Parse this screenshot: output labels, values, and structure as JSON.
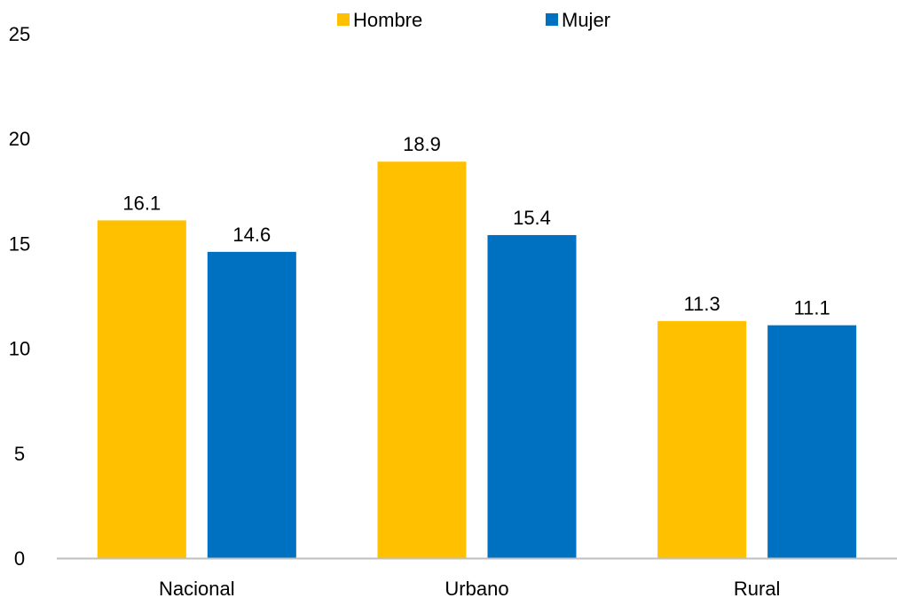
{
  "chart_data": {
    "type": "bar",
    "categories": [
      "Nacional",
      "Urbano",
      "Rural"
    ],
    "series": [
      {
        "name": "Hombre",
        "values": [
          16.1,
          18.9,
          11.3
        ],
        "color": "#FFC000"
      },
      {
        "name": "Mujer",
        "values": [
          14.6,
          15.4,
          11.1
        ],
        "color": "#0070C0"
      }
    ],
    "ylim": [
      0,
      25
    ],
    "yticks": [
      0,
      5,
      10,
      15,
      20,
      25
    ],
    "ytick_labels": [
      "0",
      "5",
      "10",
      "15",
      "20",
      "25"
    ],
    "grid": false,
    "legend_position": "top-center",
    "axis_color": "#BFBFBF"
  }
}
